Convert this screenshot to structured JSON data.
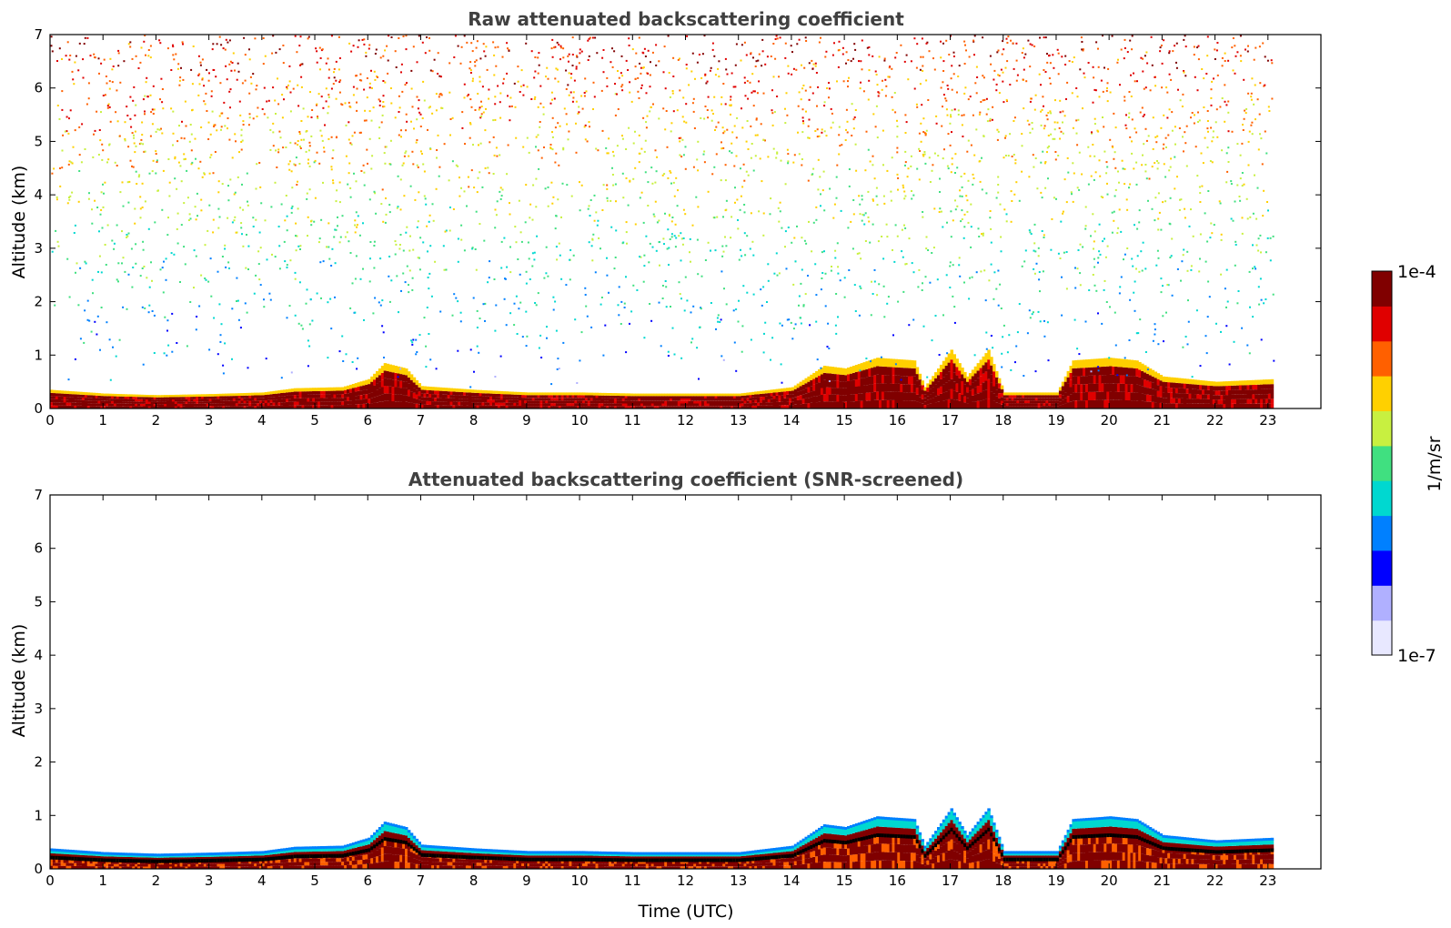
{
  "colors": {
    "scale": [
      "#e8e8ff",
      "#b0b0ff",
      "#0000ff",
      "#0080ff",
      "#00d8d0",
      "#40e080",
      "#c8f040",
      "#ffd000",
      "#ff6000",
      "#e00000",
      "#800000"
    ],
    "frame": "#000000",
    "title": "#404040"
  },
  "chart_data": [
    {
      "type": "heatmap",
      "title": "Raw attenuated backscattering coefficient",
      "ylabel": "Altitude (km)",
      "xlim": [
        0,
        24
      ],
      "ylim": [
        0,
        7
      ],
      "xticks": [
        0,
        1,
        2,
        3,
        4,
        5,
        6,
        7,
        8,
        9,
        10,
        11,
        12,
        13,
        14,
        15,
        16,
        17,
        18,
        19,
        20,
        21,
        22,
        23
      ],
      "yticks": [
        0,
        1,
        2,
        3,
        4,
        5,
        6,
        7
      ],
      "data_end_time": 23.1,
      "screened": false,
      "layer_top_km": [
        [
          0,
          0.35
        ],
        [
          1,
          0.28
        ],
        [
          2,
          0.25
        ],
        [
          3,
          0.27
        ],
        [
          4,
          0.3
        ],
        [
          4.6,
          0.38
        ],
        [
          5.5,
          0.4
        ],
        [
          6,
          0.55
        ],
        [
          6.3,
          0.85
        ],
        [
          6.7,
          0.75
        ],
        [
          7,
          0.42
        ],
        [
          8,
          0.35
        ],
        [
          9,
          0.3
        ],
        [
          10,
          0.3
        ],
        [
          11,
          0.28
        ],
        [
          12,
          0.28
        ],
        [
          13,
          0.28
        ],
        [
          14,
          0.4
        ],
        [
          14.6,
          0.8
        ],
        [
          15,
          0.75
        ],
        [
          15.6,
          0.95
        ],
        [
          16.3,
          0.9
        ],
        [
          16.5,
          0.4
        ],
        [
          17,
          1.1
        ],
        [
          17.3,
          0.6
        ],
        [
          17.7,
          1.1
        ],
        [
          18,
          0.3
        ],
        [
          19,
          0.3
        ],
        [
          19.3,
          0.9
        ],
        [
          20,
          0.95
        ],
        [
          20.5,
          0.9
        ],
        [
          21,
          0.6
        ],
        [
          22,
          0.5
        ],
        [
          23.1,
          0.55
        ]
      ]
    },
    {
      "type": "heatmap",
      "title": "Attenuated backscattering coefficient (SNR-screened)",
      "ylabel": "Altitude (km)",
      "xlabel": "Time (UTC)",
      "xlim": [
        0,
        24
      ],
      "ylim": [
        0,
        7
      ],
      "xticks": [
        0,
        1,
        2,
        3,
        4,
        5,
        6,
        7,
        8,
        9,
        10,
        11,
        12,
        13,
        14,
        15,
        16,
        17,
        18,
        19,
        20,
        21,
        22,
        23
      ],
      "yticks": [
        0,
        1,
        2,
        3,
        4,
        5,
        6,
        7
      ],
      "data_end_time": 23.1,
      "screened": true,
      "layer_top_km": [
        [
          0,
          0.35
        ],
        [
          1,
          0.28
        ],
        [
          2,
          0.25
        ],
        [
          3,
          0.27
        ],
        [
          4,
          0.3
        ],
        [
          4.6,
          0.38
        ],
        [
          5.5,
          0.4
        ],
        [
          6,
          0.55
        ],
        [
          6.3,
          0.85
        ],
        [
          6.7,
          0.75
        ],
        [
          7,
          0.42
        ],
        [
          8,
          0.35
        ],
        [
          9,
          0.3
        ],
        [
          10,
          0.3
        ],
        [
          11,
          0.28
        ],
        [
          12,
          0.28
        ],
        [
          13,
          0.28
        ],
        [
          14,
          0.4
        ],
        [
          14.6,
          0.8
        ],
        [
          15,
          0.75
        ],
        [
          15.6,
          0.95
        ],
        [
          16.3,
          0.9
        ],
        [
          16.5,
          0.4
        ],
        [
          17,
          1.1
        ],
        [
          17.3,
          0.6
        ],
        [
          17.7,
          1.1
        ],
        [
          18,
          0.3
        ],
        [
          19,
          0.3
        ],
        [
          19.3,
          0.9
        ],
        [
          20,
          0.95
        ],
        [
          20.5,
          0.9
        ],
        [
          21,
          0.6
        ],
        [
          22,
          0.5
        ],
        [
          23.1,
          0.55
        ]
      ]
    }
  ],
  "colorbar": {
    "max_label": "1e-4",
    "min_label": "1e-7",
    "unit_label": "1/m/sr"
  }
}
